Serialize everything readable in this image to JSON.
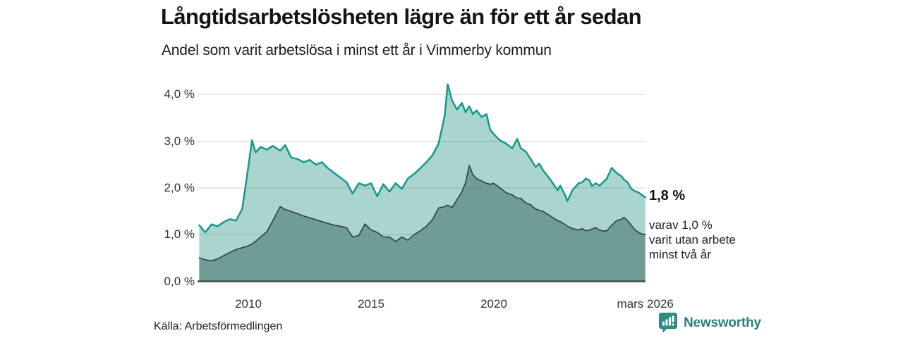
{
  "header": {
    "title": "Långtidsarbetslösheten lägre än för ett år sedan",
    "subtitle": "Andel som varit arbetslösa i minst ett år i Vimmerby kommun"
  },
  "annotation": {
    "value_label": "1,8 %",
    "detail_text": "varav 1,0 %\nvarit utan arbete\nminst två år"
  },
  "footer": {
    "source": "Källa: Arbetsförmedlingen",
    "brand": "Newsworthy",
    "logo_icon": "newsworthy-chart-bubble"
  },
  "chart_data": {
    "type": "area",
    "title": "Långtidsarbetslösheten lägre än för ett år sedan",
    "subtitle": "Andel som varit arbetslösa i minst ett år i Vimmerby kommun",
    "unit": "%",
    "grid": "horizontal",
    "legend_position": "none",
    "xlim": [
      2008,
      2026.17
    ],
    "ylim": [
      0,
      4.45
    ],
    "x_ticks": [
      {
        "value": 2010,
        "label": "2010"
      },
      {
        "value": 2015,
        "label": "2015"
      },
      {
        "value": 2020,
        "label": "2020"
      },
      {
        "value": 2026.17,
        "label": "mars 2026"
      }
    ],
    "y_ticks": [
      {
        "value": 0,
        "label": "0,0 %"
      },
      {
        "value": 1,
        "label": "1,0 %"
      },
      {
        "value": 2,
        "label": "2,0 %"
      },
      {
        "value": 3,
        "label": "3,0 %"
      },
      {
        "value": 4,
        "label": "4,0 %"
      }
    ],
    "colors": {
      "grid": "#d9d9d9",
      "axis": "#3d4b48",
      "accent_teal": "#16988a",
      "brand_teal": "#2f8c80"
    },
    "x": [
      2008.0,
      2008.25,
      2008.5,
      2008.75,
      2009.0,
      2009.25,
      2009.5,
      2009.75,
      2010.0,
      2010.15,
      2010.3,
      2010.5,
      2010.75,
      2011.0,
      2011.3,
      2011.5,
      2011.75,
      2012.0,
      2012.25,
      2012.5,
      2012.75,
      2013.0,
      2013.25,
      2013.5,
      2013.75,
      2014.0,
      2014.25,
      2014.5,
      2014.75,
      2015.0,
      2015.25,
      2015.5,
      2015.75,
      2016.0,
      2016.25,
      2016.5,
      2016.75,
      2017.0,
      2017.25,
      2017.5,
      2017.75,
      2018.0,
      2018.12,
      2018.3,
      2018.5,
      2018.7,
      2018.85,
      2019.0,
      2019.15,
      2019.3,
      2019.5,
      2019.7,
      2019.85,
      2020.0,
      2020.25,
      2020.5,
      2020.75,
      2020.95,
      2021.1,
      2021.3,
      2021.5,
      2021.7,
      2021.85,
      2022.0,
      2022.3,
      2022.6,
      2022.7,
      2022.9,
      2023.0,
      2023.2,
      2023.45,
      2023.6,
      2023.75,
      2023.9,
      2024.0,
      2024.15,
      2024.3,
      2024.45,
      2024.6,
      2024.8,
      2025.0,
      2025.2,
      2025.3,
      2025.45,
      2025.6,
      2025.75,
      2025.9,
      2026.0,
      2026.17
    ],
    "series": [
      {
        "name": "Arbetslösa minst ett år",
        "end_label": "1,8 %",
        "line_color": "#16988a",
        "fill_color": "rgba(40,150,132,0.40)",
        "line_width": 2.5,
        "values": [
          1.2,
          1.05,
          1.22,
          1.18,
          1.27,
          1.33,
          1.3,
          1.55,
          2.45,
          3.02,
          2.76,
          2.88,
          2.82,
          2.9,
          2.8,
          2.92,
          2.65,
          2.62,
          2.55,
          2.6,
          2.5,
          2.55,
          2.42,
          2.32,
          2.22,
          2.12,
          1.88,
          2.1,
          2.05,
          2.1,
          1.82,
          2.08,
          1.92,
          2.1,
          1.98,
          2.2,
          2.3,
          2.42,
          2.55,
          2.7,
          2.95,
          3.55,
          4.22,
          3.87,
          3.68,
          3.82,
          3.62,
          3.75,
          3.58,
          3.66,
          3.52,
          3.58,
          3.25,
          3.15,
          3.02,
          2.95,
          2.85,
          3.05,
          2.85,
          2.78,
          2.62,
          2.45,
          2.52,
          2.38,
          2.18,
          1.95,
          2.05,
          1.85,
          1.72,
          1.95,
          2.1,
          2.12,
          2.2,
          2.16,
          2.04,
          2.1,
          2.05,
          2.12,
          2.2,
          2.43,
          2.32,
          2.25,
          2.18,
          2.12,
          1.98,
          1.93,
          1.9,
          1.86,
          1.8
        ]
      },
      {
        "name": "Arbetslösa minst två år",
        "end_label": "1,0 %",
        "line_color": "#333f3c",
        "fill_color": "rgba(63,109,102,0.55)",
        "line_width": 1.6,
        "values": [
          0.5,
          0.46,
          0.44,
          0.48,
          0.55,
          0.62,
          0.68,
          0.72,
          0.76,
          0.8,
          0.86,
          0.95,
          1.06,
          1.3,
          1.6,
          1.54,
          1.5,
          1.45,
          1.4,
          1.36,
          1.32,
          1.28,
          1.24,
          1.2,
          1.18,
          1.15,
          0.95,
          0.98,
          1.23,
          1.1,
          1.05,
          0.95,
          0.95,
          0.85,
          0.95,
          0.88,
          1.0,
          1.08,
          1.18,
          1.32,
          1.57,
          1.6,
          1.63,
          1.58,
          1.75,
          1.92,
          2.12,
          2.48,
          2.28,
          2.2,
          2.15,
          2.1,
          2.08,
          2.1,
          2.0,
          1.9,
          1.85,
          1.78,
          1.78,
          1.68,
          1.64,
          1.55,
          1.52,
          1.5,
          1.4,
          1.3,
          1.28,
          1.22,
          1.18,
          1.13,
          1.1,
          1.13,
          1.08,
          1.1,
          1.12,
          1.15,
          1.1,
          1.08,
          1.08,
          1.2,
          1.3,
          1.33,
          1.37,
          1.3,
          1.2,
          1.1,
          1.05,
          1.02,
          1.0
        ]
      }
    ]
  }
}
